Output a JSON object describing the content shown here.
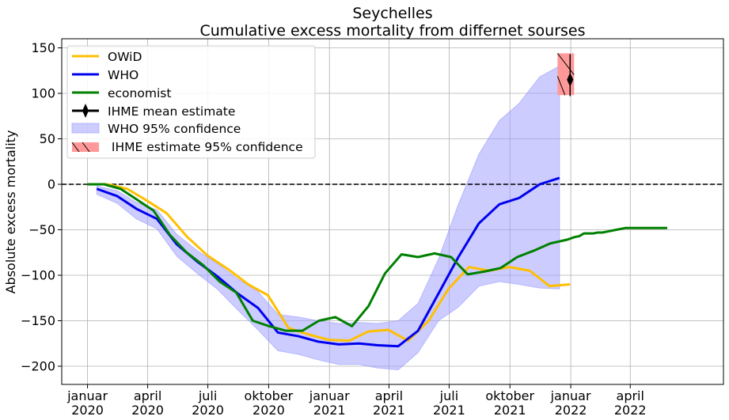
{
  "chart_data": {
    "type": "line",
    "title": "Seychelles",
    "subtitle": "Cumulative excess mortality from differnet sourses",
    "xlabel": "",
    "ylabel": "Absolute excess mortality",
    "ylim": [
      -220,
      160
    ],
    "xlim": [
      "2019-11-23",
      "2022-08-20"
    ],
    "grid": true,
    "legend_position": "top-left",
    "zero_line": {
      "y": 0,
      "style": "dashed",
      "color": "#000000"
    },
    "x_ticks": [
      {
        "date": "2020-01-01",
        "label": "januar\n2020"
      },
      {
        "date": "2020-04-01",
        "label": "april\n2020"
      },
      {
        "date": "2020-07-01",
        "label": "juli\n2020"
      },
      {
        "date": "2020-10-01",
        "label": "oktober\n2020"
      },
      {
        "date": "2021-01-01",
        "label": "januar\n2021"
      },
      {
        "date": "2021-04-01",
        "label": "april\n2021"
      },
      {
        "date": "2021-07-01",
        "label": "juli\n2021"
      },
      {
        "date": "2021-10-01",
        "label": "oktober\n2021"
      },
      {
        "date": "2022-01-01",
        "label": "januar\n2022"
      },
      {
        "date": "2022-04-01",
        "label": "april\n2022"
      }
    ],
    "y_ticks": [
      -200,
      -150,
      -100,
      -50,
      0,
      50,
      100,
      150
    ],
    "series": [
      {
        "name": "OWiD",
        "color": "#ffbf00",
        "x": [
          "2020-01-01",
          "2020-01-31",
          "2020-03-01",
          "2020-03-31",
          "2020-04-30",
          "2020-05-31",
          "2020-06-30",
          "2020-07-31",
          "2020-08-31",
          "2020-09-30",
          "2020-10-31",
          "2020-11-30",
          "2020-12-31",
          "2021-01-31",
          "2021-02-28",
          "2021-03-31",
          "2021-04-30",
          "2021-05-31",
          "2021-06-30",
          "2021-07-31",
          "2021-08-31",
          "2021-09-30",
          "2021-10-31",
          "2021-11-30",
          "2021-12-31"
        ],
        "y": [
          0,
          0,
          -5,
          -18,
          -32,
          -58,
          -78,
          -93,
          -110,
          -122,
          -158,
          -165,
          -171,
          -172,
          -162,
          -160,
          -172,
          -150,
          -115,
          -91,
          -95,
          -91,
          -95,
          -112,
          -110
        ]
      },
      {
        "name": "WHO",
        "color": "#0000ee",
        "x": [
          "2020-01-15",
          "2020-02-15",
          "2020-03-15",
          "2020-04-15",
          "2020-05-15",
          "2020-06-15",
          "2020-07-15",
          "2020-08-15",
          "2020-09-15",
          "2020-10-15",
          "2020-11-15",
          "2020-12-15",
          "2021-01-15",
          "2021-02-15",
          "2021-03-15",
          "2021-04-15",
          "2021-05-15",
          "2021-06-15",
          "2021-07-15",
          "2021-08-15",
          "2021-09-15",
          "2021-10-15",
          "2021-11-15",
          "2021-12-15"
        ],
        "y": [
          -5,
          -13,
          -27,
          -38,
          -66,
          -85,
          -101,
          -120,
          -136,
          -163,
          -167,
          -173,
          -176,
          -175,
          -177,
          -178,
          -161,
          -120,
          -80,
          -43,
          -22,
          -15,
          0,
          7
        ]
      },
      {
        "name": "economist",
        "color": "#008000",
        "x": [
          "2020-01-01",
          "2020-01-26",
          "2020-02-20",
          "2020-03-16",
          "2020-04-10",
          "2020-05-05",
          "2020-05-30",
          "2020-06-24",
          "2020-07-19",
          "2020-08-13",
          "2020-09-07",
          "2020-10-02",
          "2020-10-27",
          "2020-11-21",
          "2020-12-16",
          "2021-01-10",
          "2021-02-04",
          "2021-03-01",
          "2021-03-26",
          "2021-04-20",
          "2021-05-15",
          "2021-06-09",
          "2021-07-04",
          "2021-07-29",
          "2021-08-23",
          "2021-09-17",
          "2021-10-12",
          "2021-11-06",
          "2021-12-01",
          "2021-12-26",
          "2022-01-07",
          "2022-01-14",
          "2022-01-21",
          "2022-01-28",
          "2022-02-04",
          "2022-02-11",
          "2022-02-18",
          "2022-02-25",
          "2022-03-04",
          "2022-03-11",
          "2022-03-18",
          "2022-03-25",
          "2022-04-01",
          "2022-04-08",
          "2022-04-15",
          "2022-04-22",
          "2022-04-29",
          "2022-05-06",
          "2022-05-13",
          "2022-05-20",
          "2022-05-27"
        ],
        "y": [
          0,
          0,
          -5,
          -17,
          -29,
          -56,
          -75,
          -89,
          -107,
          -119,
          -150,
          -156,
          -161,
          -161,
          -150,
          -146,
          -156,
          -134,
          -98,
          -77,
          -80,
          -76,
          -80,
          -99,
          -96,
          -92,
          -80,
          -73,
          -65,
          -61,
          -58,
          -57,
          -54,
          -54,
          -54,
          -53,
          -53,
          -52,
          -51,
          -50,
          -49,
          -48,
          -48,
          -48,
          -48,
          -48,
          -48,
          -48,
          -48,
          -48,
          -48
        ]
      },
      {
        "name": "IHME mean estimate",
        "color": "#000000",
        "marker": "thin_diamond",
        "x": [
          "2021-12-31"
        ],
        "y": [
          115
        ],
        "error_low": [
          97
        ],
        "error_high": [
          143
        ]
      }
    ],
    "bands": [
      {
        "name": "WHO 95% confidence",
        "color": "#9999ff",
        "x": [
          "2020-01-15",
          "2020-02-15",
          "2020-03-15",
          "2020-04-15",
          "2020-05-15",
          "2020-06-15",
          "2020-07-15",
          "2020-08-15",
          "2020-09-15",
          "2020-10-15",
          "2020-11-15",
          "2020-12-15",
          "2021-01-15",
          "2021-02-15",
          "2021-03-15",
          "2021-04-15",
          "2021-05-15",
          "2021-06-15",
          "2021-07-15",
          "2021-08-15",
          "2021-09-15",
          "2021-10-15",
          "2021-11-15",
          "2021-12-15"
        ],
        "upper": [
          -2,
          -7,
          -20,
          -28,
          -55,
          -73,
          -87,
          -104,
          -118,
          -143,
          -146,
          -150,
          -153,
          -152,
          -153,
          -150,
          -131,
          -82,
          -22,
          33,
          70,
          89,
          118,
          130
        ],
        "lower": [
          -11,
          -21,
          -38,
          -49,
          -79,
          -98,
          -115,
          -138,
          -160,
          -183,
          -187,
          -193,
          -198,
          -198,
          -202,
          -204,
          -185,
          -150,
          -135,
          -112,
          -107,
          -110,
          -114,
          -115
        ]
      }
    ],
    "ihme_band": {
      "name": " IHME estimate 95% confidence",
      "color": "#ff9999",
      "x_start": "2021-12-12",
      "x_end": "2022-01-06",
      "low": 98,
      "high": 144
    }
  }
}
